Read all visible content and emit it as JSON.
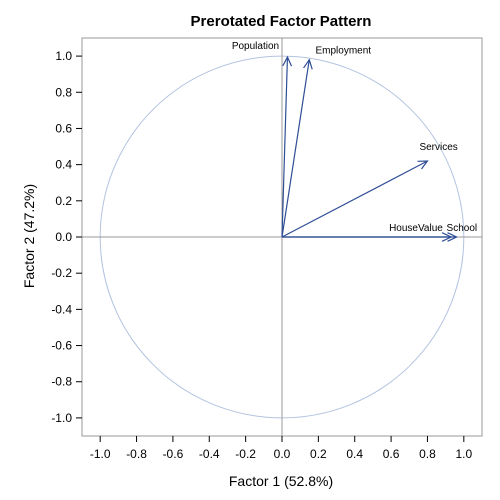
{
  "chart_data": {
    "type": "vector",
    "title": "Prerotated Factor Pattern",
    "xlabel": "Factor 1 (52.8%)",
    "ylabel": "Factor 2 (47.2%)",
    "xlim": [
      -1.1,
      1.1
    ],
    "ylim": [
      -1.1,
      1.1
    ],
    "x_ticks": [
      -1.0,
      -0.8,
      -0.6,
      -0.4,
      -0.2,
      0.0,
      0.2,
      0.4,
      0.6,
      0.8,
      1.0
    ],
    "y_ticks": [
      -1.0,
      -0.8,
      -0.6,
      -0.4,
      -0.2,
      0.0,
      0.2,
      0.4,
      0.6,
      0.8,
      1.0
    ],
    "unit_circle": true,
    "reference_lines": [
      0
    ],
    "vectors": [
      {
        "name": "Population",
        "x": 0.03,
        "y": 0.995
      },
      {
        "name": "Employment",
        "x": 0.15,
        "y": 0.98
      },
      {
        "name": "Services",
        "x": 0.8,
        "y": 0.42
      },
      {
        "name": "HouseValue",
        "x": 0.93,
        "y": 0.0
      },
      {
        "name": "School",
        "x": 0.96,
        "y": 0.0
      }
    ],
    "colors": {
      "vector": "#2e4e95",
      "circle": "#b3c3e0",
      "frame": "#999999",
      "reference": "#999999"
    }
  }
}
